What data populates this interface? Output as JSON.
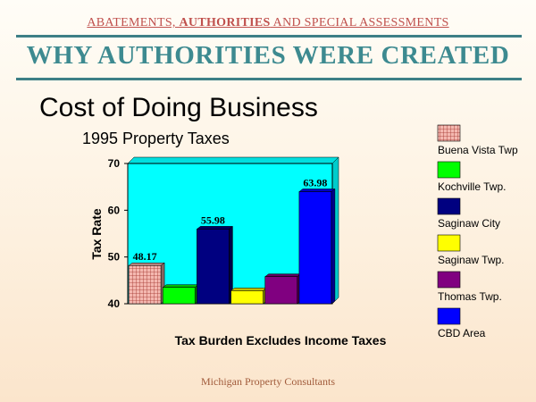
{
  "header": {
    "part1": "ABATEMENTS, ",
    "part2": "AUTHORITIES",
    "part3": " AND SPECIAL ASSESSMENTS"
  },
  "slide_title": "WHY AUTHORITIES WERE CREATED",
  "footer": "Michigan Property Consultants",
  "chart_data": {
    "type": "bar",
    "title": "Cost of Doing Business",
    "subtitle": "1995 Property Taxes",
    "xlabel": "Tax Burden Excludes Income Taxes",
    "ylabel": "Tax Rate",
    "ylim": [
      40,
      70
    ],
    "yticks": [
      40,
      50,
      60,
      70
    ],
    "grid": false,
    "legend_position": "right",
    "categories": [
      "Buena Vista Twp",
      "Kochville Twp.",
      "Saginaw City",
      "Saginaw Twp.",
      "Thomas Twp.",
      "CBD Area"
    ],
    "values": [
      48.17,
      43.5,
      55.98,
      42.8,
      45.8,
      63.98
    ],
    "data_labels": [
      "48.17",
      "",
      "55.98",
      "",
      "",
      "63.98"
    ],
    "colors": [
      "#f4b8b0",
      "#00ff00",
      "#000080",
      "#ffff00",
      "#800080",
      "#0000ff"
    ],
    "plot_background": "#00ffff"
  }
}
